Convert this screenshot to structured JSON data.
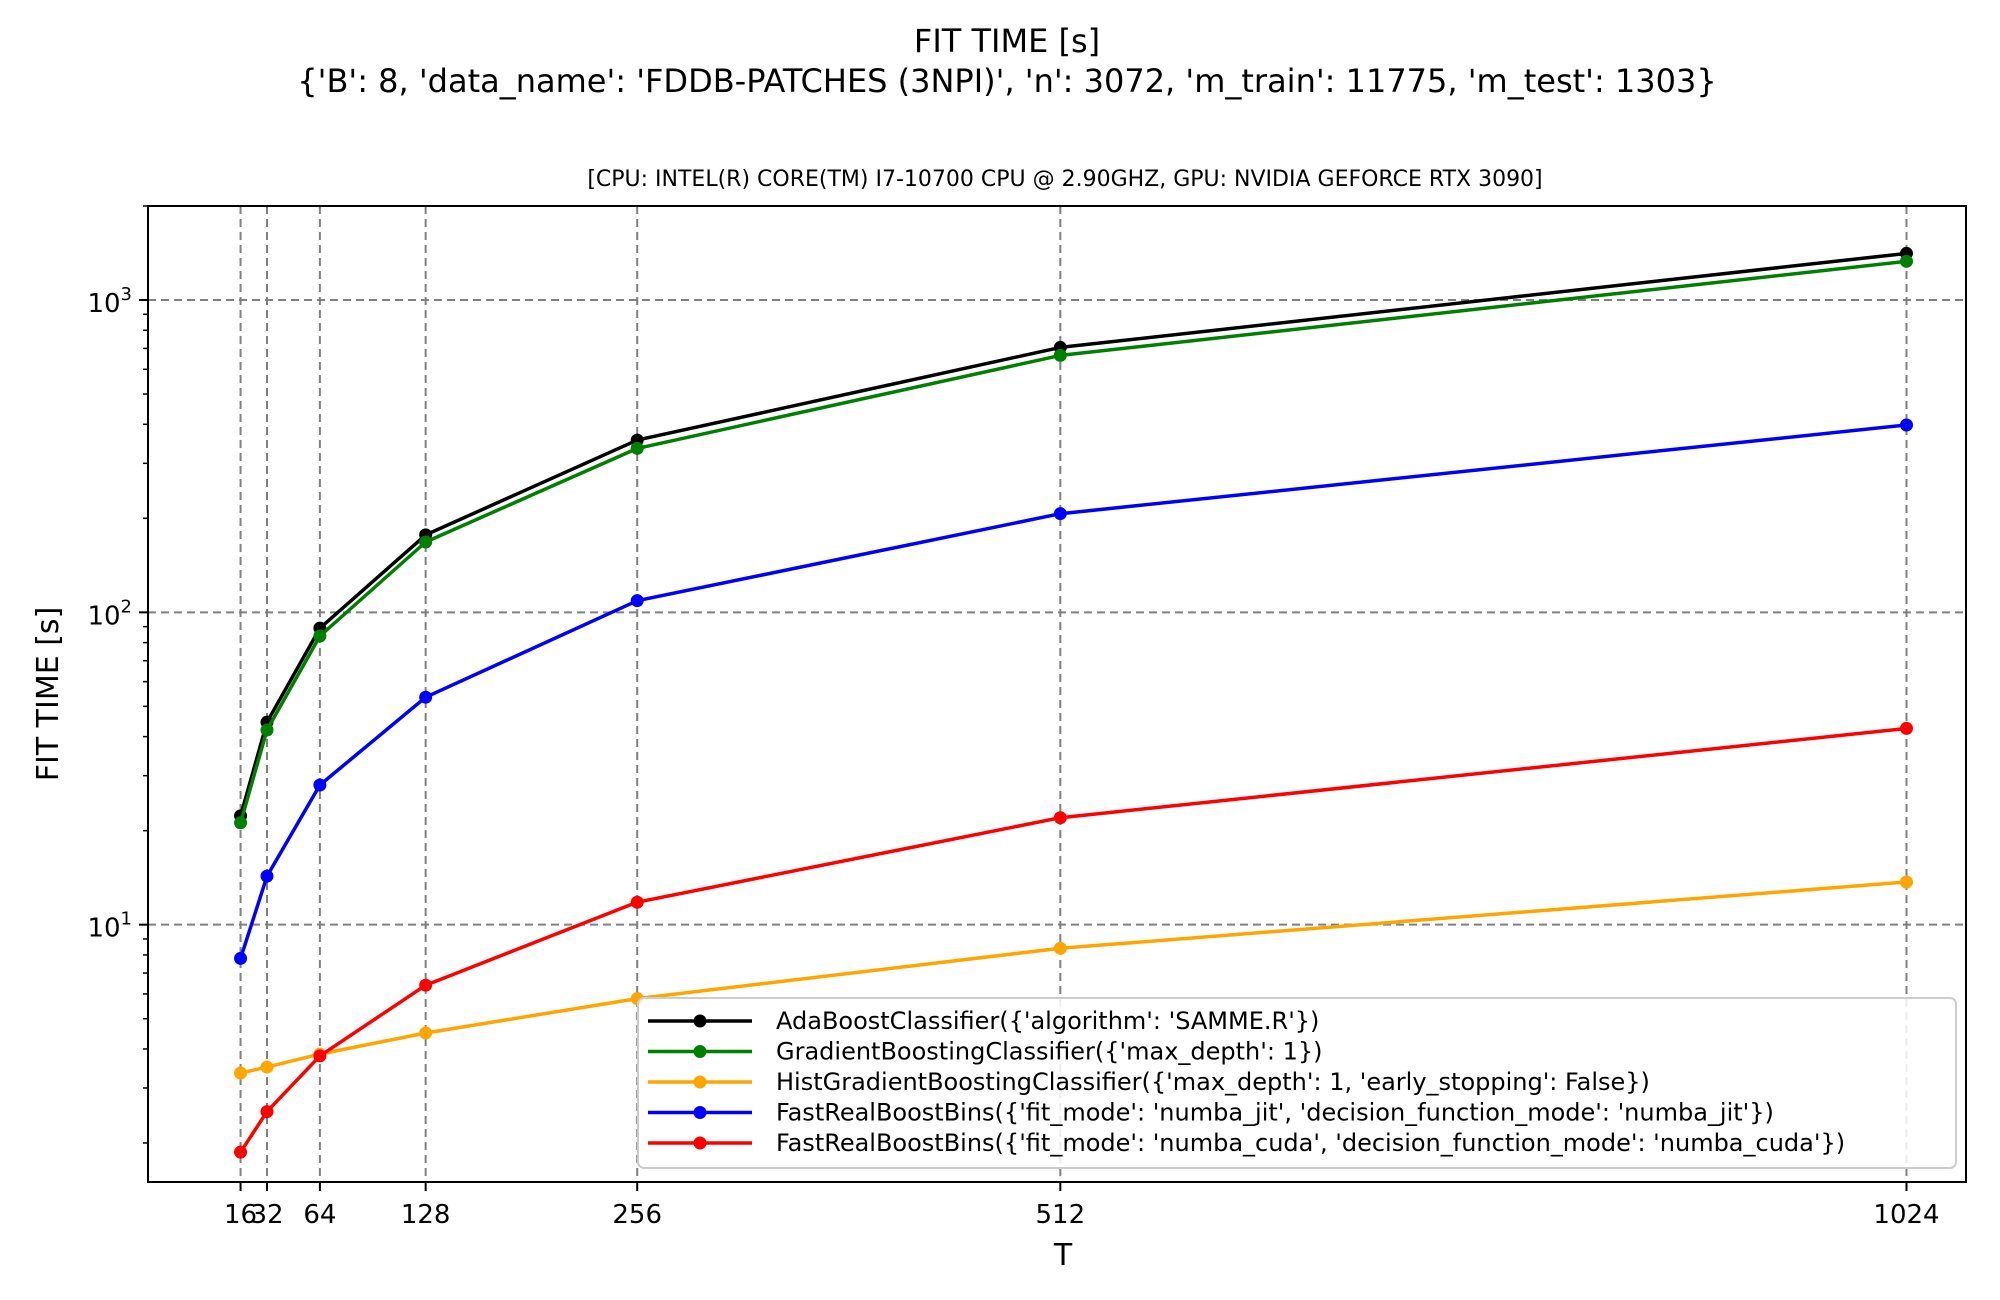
{
  "figure": {
    "title_line1": "FIT TIME [s]",
    "title_line2": "{'B': 8, 'data_name': 'FDDB-PATCHES (3NPI)', 'n': 3072, 'm_train': 11775, 'm_test': 1303}",
    "subtitle": "[CPU: INTEL(R) CORE(TM) I7-10700 CPU @ 2.90GHZ, GPU: NVIDIA GEFORCE RTX 3090]"
  },
  "chart_data": {
    "type": "line",
    "xlabel": "T",
    "ylabel": "FIT TIME [s]",
    "yscale": "log",
    "x": [
      16,
      32,
      64,
      128,
      256,
      512,
      1024
    ],
    "x_tick_labels": [
      "16",
      "32",
      "64",
      "128",
      "256",
      "512",
      "1024"
    ],
    "xlim": [
      -40,
      1060
    ],
    "ylim": [
      1.5,
      2000
    ],
    "y_major_ticks": [
      10,
      100,
      1000
    ],
    "y_tick_labels": [
      {
        "base": "10",
        "exp": "1"
      },
      {
        "base": "10",
        "exp": "2"
      },
      {
        "base": "10",
        "exp": "3"
      }
    ],
    "grid": true,
    "legend_position": "lower right",
    "series": [
      {
        "name": "AdaBoostClassifier({'algorithm': 'SAMME.R'})",
        "color": "#000000",
        "values": [
          22.3,
          44.5,
          89,
          177,
          356,
          705,
          1410
        ]
      },
      {
        "name": "GradientBoostingClassifier({'max_depth': 1})",
        "color": "#008000",
        "values": [
          21.2,
          42,
          84,
          168,
          335,
          665,
          1330
        ]
      },
      {
        "name": "HistGradientBoostingClassifier({'max_depth': 1, 'early_stopping': False})",
        "color": "#ffa500",
        "values": [
          3.35,
          3.5,
          3.85,
          4.5,
          5.8,
          8.4,
          13.7
        ]
      },
      {
        "name": "FastRealBoostBins({'fit_mode': 'numba_jit', 'decision_function_mode': 'numba_jit'})",
        "color": "#0000ff",
        "values": [
          7.8,
          14.3,
          28,
          53.5,
          109,
          207,
          398
        ]
      },
      {
        "name": "FastRealBoostBins({'fit_mode': 'numba_cuda', 'decision_function_mode': 'numba_cuda'})",
        "color": "#ff0000",
        "values": [
          1.87,
          2.52,
          3.8,
          6.4,
          11.8,
          22,
          42.5
        ]
      }
    ]
  }
}
